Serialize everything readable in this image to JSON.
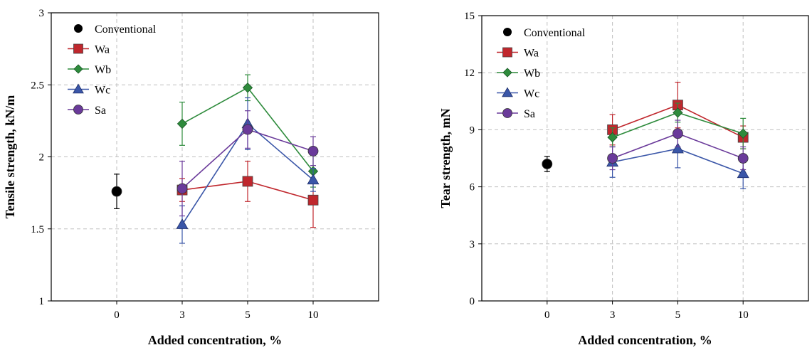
{
  "colors": {
    "Conventional": "#000000",
    "Wa": "#c0272d",
    "Wb": "#2e8b3c",
    "Wc": "#3a56a8",
    "Sa": "#6a3a9a",
    "grid": "#bfbfbf"
  },
  "chart_data": [
    {
      "type": "line",
      "xlabel": "Added concentration, %",
      "ylabel": "Tensile strength, kN/m",
      "categories": [
        "0",
        "3",
        "5",
        "10"
      ],
      "ylim": [
        1,
        3
      ],
      "yticks": [
        "1",
        "1.5",
        "2",
        "2.5",
        "3"
      ],
      "yticks_values": [
        1,
        1.5,
        2,
        2.5,
        3
      ],
      "grid": true,
      "legend_position": "top-left",
      "series": [
        {
          "name": "Conventional",
          "marker": "circle",
          "x": [
            "0"
          ],
          "values": [
            1.76
          ],
          "errors": [
            0.12
          ]
        },
        {
          "name": "Wa",
          "marker": "square",
          "x": [
            "3",
            "5",
            "10"
          ],
          "values": [
            1.77,
            1.83,
            1.7
          ],
          "errors": [
            0.08,
            0.14,
            0.19
          ]
        },
        {
          "name": "Wb",
          "marker": "diamond",
          "x": [
            "3",
            "5",
            "10"
          ],
          "values": [
            2.23,
            2.48,
            1.9
          ],
          "errors": [
            0.15,
            0.09,
            0.11
          ]
        },
        {
          "name": "Wc",
          "marker": "triangle",
          "x": [
            "3",
            "5",
            "10"
          ],
          "values": [
            1.53,
            2.23,
            1.84
          ],
          "errors": [
            0.13,
            0.18,
            0.08
          ]
        },
        {
          "name": "Sa",
          "marker": "circle",
          "x": [
            "3",
            "5",
            "10"
          ],
          "values": [
            1.78,
            2.19,
            2.04
          ],
          "errors": [
            0.19,
            0.13,
            0.1
          ]
        }
      ]
    },
    {
      "type": "line",
      "xlabel": "Added concentration, %",
      "ylabel": "Tear strength, mN",
      "categories": [
        "0",
        "3",
        "5",
        "10"
      ],
      "ylim": [
        0,
        15
      ],
      "yticks": [
        "0",
        "3",
        "6",
        "9",
        "12",
        "15"
      ],
      "yticks_values": [
        0,
        3,
        6,
        9,
        12,
        15
      ],
      "grid": true,
      "legend_position": "top-left",
      "series": [
        {
          "name": "Conventional",
          "marker": "circle",
          "x": [
            "0"
          ],
          "values": [
            7.2
          ],
          "errors": [
            0.4
          ]
        },
        {
          "name": "Wa",
          "marker": "square",
          "x": [
            "3",
            "5",
            "10"
          ],
          "values": [
            9.0,
            10.3,
            8.6
          ],
          "errors": [
            0.8,
            1.2,
            0.6
          ]
        },
        {
          "name": "Wb",
          "marker": "diamond",
          "x": [
            "3",
            "5",
            "10"
          ],
          "values": [
            8.6,
            9.9,
            8.8
          ],
          "errors": [
            0.5,
            0.5,
            0.8
          ]
        },
        {
          "name": "Wc",
          "marker": "triangle",
          "x": [
            "3",
            "5",
            "10"
          ],
          "values": [
            7.3,
            8.0,
            6.7
          ],
          "errors": [
            0.8,
            1.0,
            0.8
          ]
        },
        {
          "name": "Sa",
          "marker": "circle",
          "x": [
            "3",
            "5",
            "10"
          ],
          "values": [
            7.5,
            8.8,
            7.5
          ],
          "errors": [
            0.6,
            0.7,
            0.6
          ]
        }
      ]
    }
  ]
}
